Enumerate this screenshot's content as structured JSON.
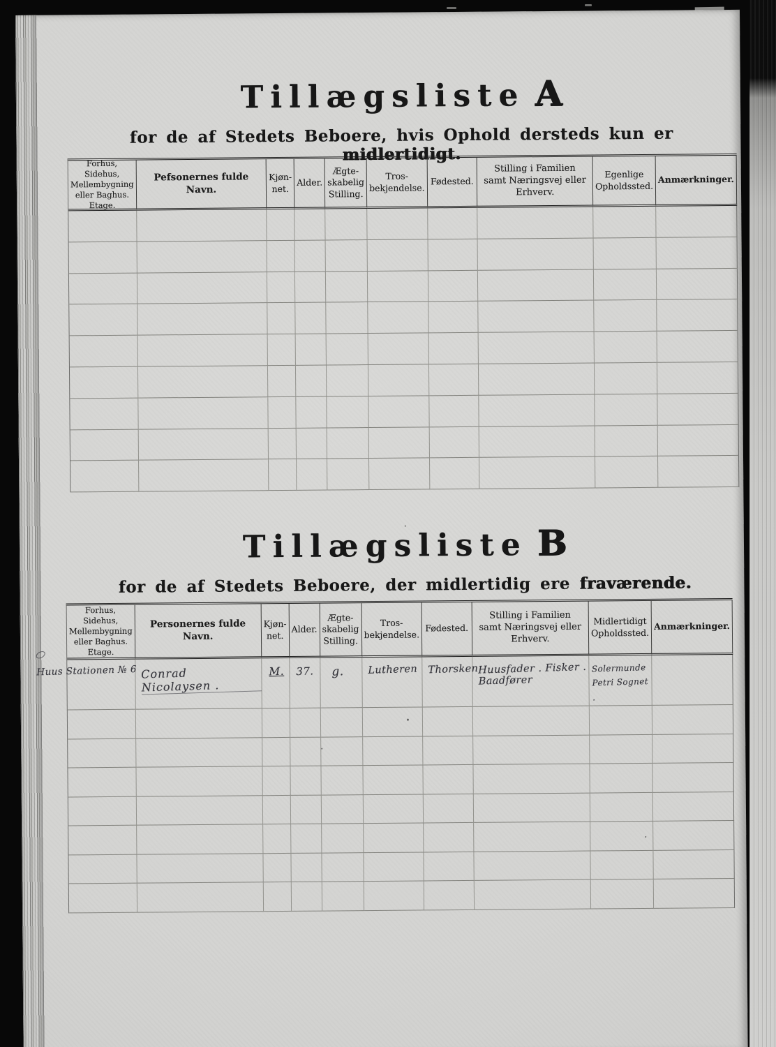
{
  "section_a": {
    "title_main": "Tillægsliste",
    "title_letter": "A",
    "subtitle": "for de af Stedets Beboere, hvis Ophold dersteds kun er",
    "subtitle_emphasis": "midlertidigt.",
    "columns": [
      {
        "label": "Forhus, Sidehus,\nMellembygning\neller Baghus.\nEtage.",
        "bold": false
      },
      {
        "label": "Pefsonernes fulde Navn.",
        "bold": true
      },
      {
        "label": "Kjøn-\nnet.",
        "bold": false
      },
      {
        "label": "Alder.",
        "bold": false
      },
      {
        "label": "Ægte-\nskabelig\nStilling.",
        "bold": false
      },
      {
        "label": "Tros-\nbekjendelse.",
        "bold": false
      },
      {
        "label": "Fødested.",
        "bold": false
      },
      {
        "label": "Stilling i Familien\nsamt Næringsvej eller Erhverv.",
        "bold": false
      },
      {
        "label": "Egenlige\nOpholdssted.",
        "bold": false
      },
      {
        "label": "Anmærkninger.",
        "bold": true
      }
    ],
    "row_count": 9
  },
  "section_b": {
    "title_main": "Tillægsliste",
    "title_letter": "B",
    "subtitle": "for de af Stedets Beboere, der midlertidig ere",
    "subtitle_emphasis": "fraværende.",
    "columns": [
      {
        "label": "Forhus, Sidehus,\nMellembygning\neller Baghus.\nEtage.",
        "bold": false
      },
      {
        "label": "Personernes fulde Navn.",
        "bold": true
      },
      {
        "label": "Kjøn-\nnet.",
        "bold": false
      },
      {
        "label": "Alder.",
        "bold": false
      },
      {
        "label": "Ægte-\nskabelig\nStilling.",
        "bold": false
      },
      {
        "label": "Tros-\nbekjendelse.",
        "bold": false
      },
      {
        "label": "Fødested.",
        "bold": false
      },
      {
        "label": "Stilling i Familien\nsamt Næringsvej eller Erhverv.",
        "bold": false
      },
      {
        "label": "Midlertidigt\nOpholdssted.",
        "bold": false
      },
      {
        "label": "Anmærkninger.",
        "bold": true
      }
    ],
    "row_count": 8,
    "entry_values": [
      "Huus Stationen № 6",
      "Conrad Nicolaysen .",
      "M.",
      "37.",
      "g.",
      "Lutheren",
      "Thorsken",
      "Huusfader . Fisker . Baadfører",
      "Solermunde\nPetri Sognet .",
      ""
    ]
  }
}
